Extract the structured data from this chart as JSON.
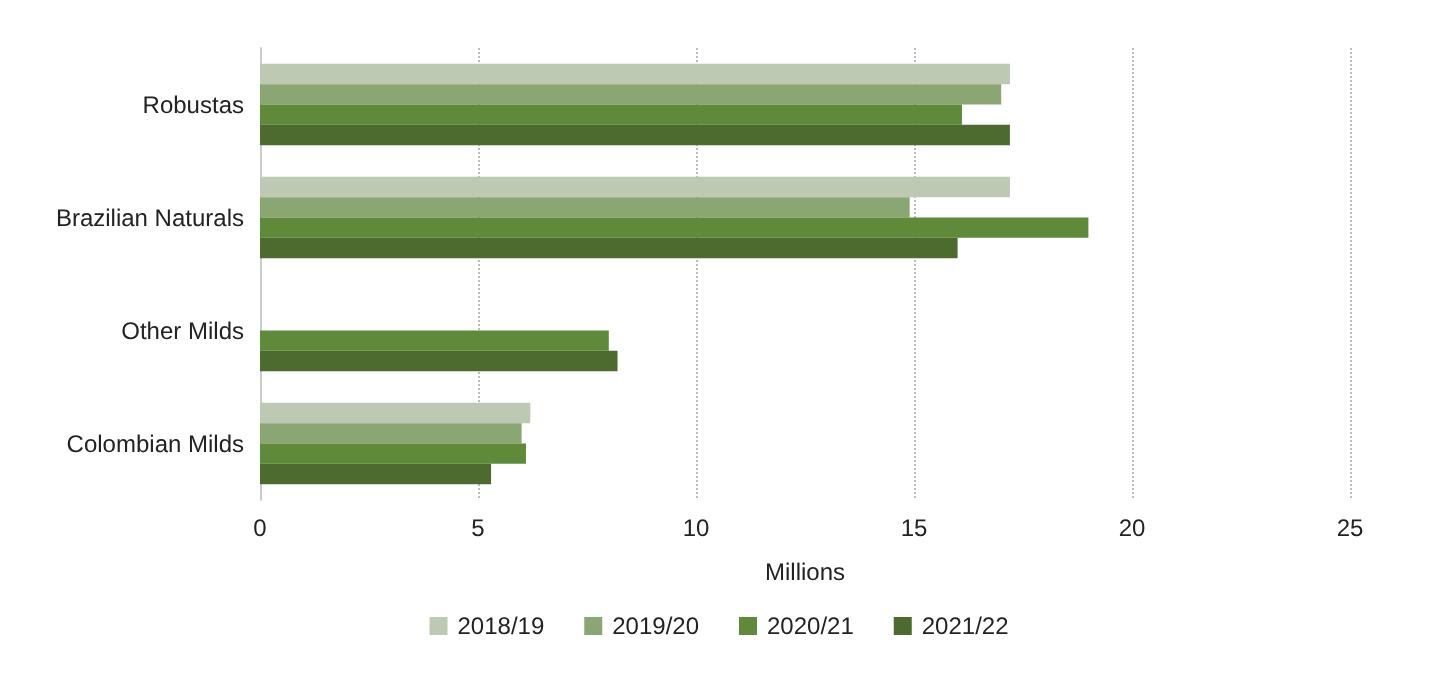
{
  "chart_data": {
    "type": "bar",
    "orientation": "horizontal",
    "xlabel": "Millions",
    "categories": [
      "Robustas",
      "Brazilian Naturals",
      "Other Milds",
      "Colombian Milds"
    ],
    "series": [
      {
        "name": "2018/19",
        "color": "#bdc9b3",
        "values": [
          17.2,
          17.2,
          null,
          6.2
        ]
      },
      {
        "name": "2019/20",
        "color": "#8aa673",
        "values": [
          17.0,
          14.9,
          null,
          6.0
        ]
      },
      {
        "name": "2020/21",
        "color": "#5f8a3a",
        "values": [
          16.1,
          19.0,
          8.0,
          6.1
        ]
      },
      {
        "name": "2021/22",
        "color": "#4e6b2f",
        "values": [
          17.2,
          16.0,
          8.2,
          5.3
        ]
      }
    ],
    "xlim": [
      0,
      25
    ],
    "xticks": [
      0,
      5,
      10,
      15,
      20,
      25
    ],
    "grid": "x",
    "legend": "bottom"
  }
}
